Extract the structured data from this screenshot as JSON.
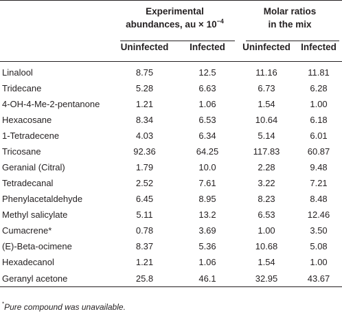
{
  "header": {
    "group1_line1": "Experimental",
    "group1_line2_pre": "abundances, au × 10",
    "group1_exponent": "−4",
    "group2_line1": "Molar ratios",
    "group2_line2": "in the mix",
    "sub_uninfected_1": "Uninfected",
    "sub_infected_1": "Infected",
    "sub_uninfected_2": "Uninfected",
    "sub_infected_2": "Infected"
  },
  "rows": [
    {
      "name": "Linalool",
      "exp_uninf": "8.75",
      "exp_inf": "12.5",
      "mol_uninf": "11.16",
      "mol_inf": "11.81"
    },
    {
      "name": "Tridecane",
      "exp_uninf": "5.28",
      "exp_inf": "6.63",
      "mol_uninf": "6.73",
      "mol_inf": "6.28"
    },
    {
      "name": "4-OH-4-Me-2-pentanone",
      "exp_uninf": "1.21",
      "exp_inf": "1.06",
      "mol_uninf": "1.54",
      "mol_inf": "1.00"
    },
    {
      "name": "Hexacosane",
      "exp_uninf": "8.34",
      "exp_inf": "6.53",
      "mol_uninf": "10.64",
      "mol_inf": "6.18"
    },
    {
      "name": "1-Tetradecene",
      "exp_uninf": "4.03",
      "exp_inf": "6.34",
      "mol_uninf": "5.14",
      "mol_inf": "6.01"
    },
    {
      "name": "Tricosane",
      "exp_uninf": "92.36",
      "exp_inf": "64.25",
      "mol_uninf": "117.83",
      "mol_inf": "60.87"
    },
    {
      "name": "Geranial (Citral)",
      "exp_uninf": "1.79",
      "exp_inf": "10.0",
      "mol_uninf": "2.28",
      "mol_inf": "9.48"
    },
    {
      "name": "Tetradecanal",
      "exp_uninf": "2.52",
      "exp_inf": "7.61",
      "mol_uninf": "3.22",
      "mol_inf": "7.21"
    },
    {
      "name": "Phenylacetaldehyde",
      "exp_uninf": "6.45",
      "exp_inf": "8.95",
      "mol_uninf": "8.23",
      "mol_inf": "8.48"
    },
    {
      "name": "Methyl salicylate",
      "exp_uninf": "5.11",
      "exp_inf": "13.2",
      "mol_uninf": "6.53",
      "mol_inf": "12.46"
    },
    {
      "name": "Cumacrene*",
      "exp_uninf": "0.78",
      "exp_inf": "3.69",
      "mol_uninf": "1.00",
      "mol_inf": "3.50"
    },
    {
      "name": "(E)-Beta-ocimene",
      "exp_uninf": "8.37",
      "exp_inf": "5.36",
      "mol_uninf": "10.68",
      "mol_inf": "5.08"
    },
    {
      "name": "Hexadecanol",
      "exp_uninf": "1.21",
      "exp_inf": "1.06",
      "mol_uninf": "1.54",
      "mol_inf": "1.00"
    },
    {
      "name": "Geranyl acetone",
      "exp_uninf": "25.8",
      "exp_inf": "46.1",
      "mol_uninf": "32.95",
      "mol_inf": "43.67"
    }
  ],
  "footnote": {
    "marker": "*",
    "text": "Pure compound was unavailable."
  }
}
